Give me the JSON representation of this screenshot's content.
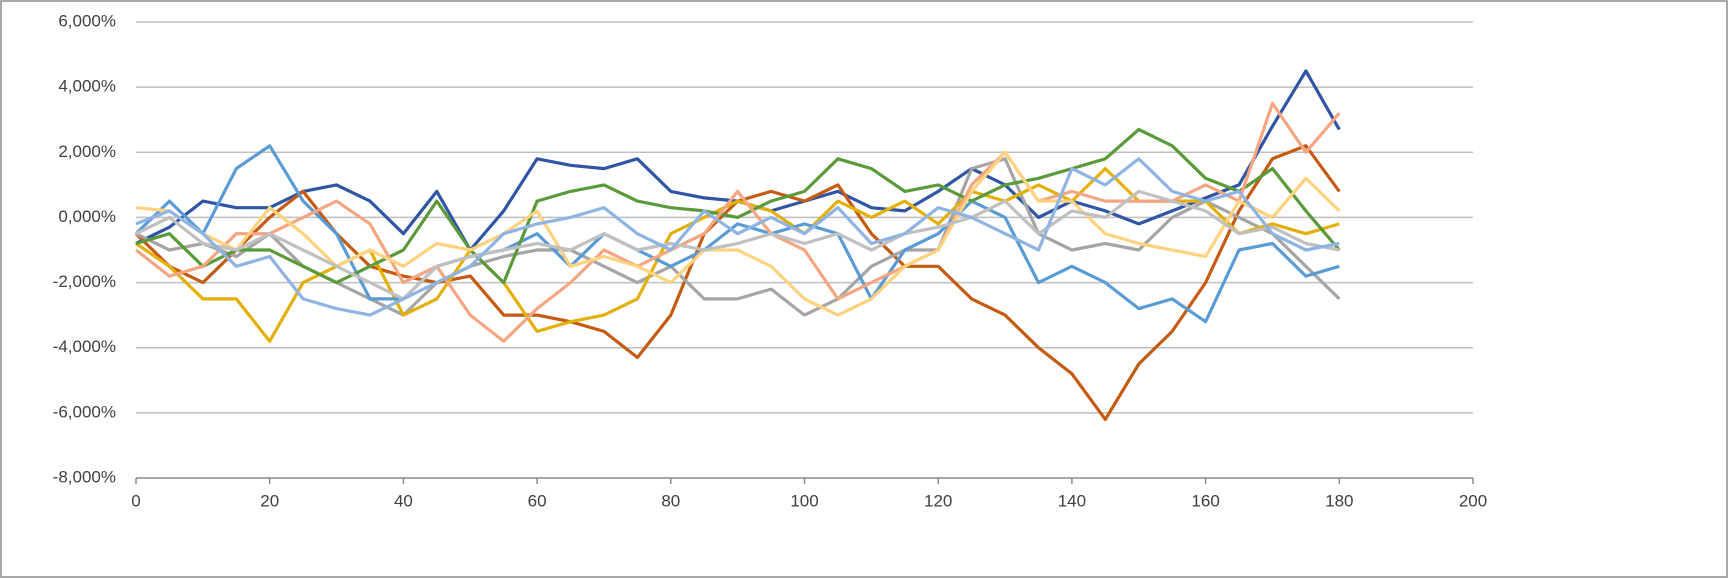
{
  "chart_data": {
    "type": "line",
    "x": [
      0,
      5,
      10,
      15,
      20,
      25,
      30,
      35,
      40,
      45,
      50,
      55,
      60,
      65,
      70,
      75,
      80,
      85,
      90,
      95,
      100,
      105,
      110,
      115,
      120,
      125,
      130,
      135,
      140,
      145,
      150,
      155,
      160,
      165,
      170,
      175,
      180
    ],
    "xlim": [
      0,
      200
    ],
    "xticks": [
      0,
      20,
      40,
      60,
      80,
      100,
      120,
      140,
      160,
      180,
      200
    ],
    "ylim": [
      -8,
      6
    ],
    "yticks": [
      {
        "value": -8,
        "label": "-8,000%"
      },
      {
        "value": -6,
        "label": "-6,000%"
      },
      {
        "value": -4,
        "label": "-4,000%"
      },
      {
        "value": -2,
        "label": "-2,000%"
      },
      {
        "value": 0,
        "label": "0,000%"
      },
      {
        "value": 2,
        "label": "2,000%"
      },
      {
        "value": 4,
        "label": "4,000%"
      },
      {
        "value": 6,
        "label": "6,000%"
      }
    ],
    "grid": true,
    "series": [
      {
        "color": "#2f55a4",
        "values": [
          -0.8,
          -0.3,
          0.5,
          0.3,
          0.3,
          0.8,
          1.0,
          0.5,
          -0.5,
          0.8,
          -1.0,
          0.2,
          1.8,
          1.6,
          1.5,
          1.8,
          0.8,
          0.6,
          0.5,
          0.2,
          0.5,
          0.8,
          0.3,
          0.2,
          0.8,
          1.5,
          1.0,
          0,
          0.5,
          0.2,
          -0.2,
          0.2,
          0.6,
          1.0,
          2.8,
          4.5,
          2.7
        ]
      },
      {
        "color": "#c55a11",
        "values": [
          -0.5,
          -1.5,
          -2.0,
          -1.0,
          0,
          0.8,
          -0.5,
          -1.5,
          -1.8,
          -2.0,
          -1.8,
          -3.0,
          -3.0,
          -3.2,
          -3.5,
          -4.3,
          -3.0,
          -0.5,
          0.5,
          0.8,
          0.5,
          1.0,
          -0.5,
          -1.5,
          -1.5,
          -2.5,
          -3.0,
          -4.0,
          -4.8,
          -6.2,
          -4.5,
          -3.5,
          -2.0,
          0.2,
          1.8,
          2.2,
          0.8
        ]
      },
      {
        "color": "#a5a5a5",
        "values": [
          -0.5,
          -1.0,
          -0.8,
          -1.2,
          -0.5,
          -1.5,
          -2.0,
          -2.5,
          -3.0,
          -2.0,
          -1.5,
          -1.2,
          -1.0,
          -1.0,
          -1.5,
          -2.0,
          -1.5,
          -2.5,
          -2.5,
          -2.2,
          -3.0,
          -2.5,
          -1.5,
          -1.0,
          -1.0,
          1.5,
          1.8,
          -0.5,
          -1.0,
          -0.8,
          -1.0,
          0,
          0.5,
          0,
          -0.5,
          -1.5,
          -2.5
        ]
      },
      {
        "color": "#e2b007",
        "values": [
          -0.8,
          -1.5,
          -2.5,
          -2.5,
          -3.8,
          -2.0,
          -1.5,
          -1.0,
          -3.0,
          -2.5,
          -1.0,
          -2.0,
          -3.5,
          -3.2,
          -3.0,
          -2.5,
          -0.5,
          0,
          0.5,
          0.2,
          -0.5,
          0.5,
          0,
          0.5,
          -0.2,
          0.8,
          0.5,
          1.0,
          0.5,
          1.5,
          0.5,
          0.5,
          0.5,
          -0.5,
          -0.2,
          -0.5,
          -0.2
        ]
      },
      {
        "color": "#5b9bd5",
        "values": [
          -0.5,
          0.5,
          -0.5,
          1.5,
          2.2,
          0.5,
          -0.5,
          -2.5,
          -2.5,
          -1.5,
          -1.2,
          -1.0,
          -0.5,
          -1.5,
          -0.5,
          -1.0,
          -1.5,
          -1.0,
          -0.2,
          -0.5,
          -0.2,
          -0.5,
          -2.5,
          -1.0,
          -0.5,
          0.5,
          0,
          -2.0,
          -1.5,
          -2.0,
          -2.8,
          -2.5,
          -3.2,
          -1.0,
          -0.8,
          -1.8,
          -1.5
        ]
      },
      {
        "color": "#5b9a3a",
        "values": [
          -0.8,
          -0.5,
          -1.5,
          -1.0,
          -1.0,
          -1.5,
          -2.0,
          -1.5,
          -1.0,
          0.5,
          -1.0,
          -2.0,
          0.5,
          0.8,
          1.0,
          0.5,
          0.3,
          0.2,
          0,
          0.5,
          0.8,
          1.8,
          1.5,
          0.8,
          1.0,
          0.5,
          1.0,
          1.2,
          1.5,
          1.8,
          2.7,
          2.2,
          1.2,
          0.8,
          1.5,
          0.2,
          -1.0
        ]
      },
      {
        "color": "#f4a582",
        "values": [
          -1.0,
          -1.8,
          -1.5,
          -0.5,
          -0.5,
          0,
          0.5,
          -0.2,
          -2.0,
          -1.5,
          -3.0,
          -3.8,
          -2.8,
          -2.0,
          -1.0,
          -1.5,
          -1.0,
          -0.5,
          0.8,
          -0.5,
          -1.0,
          -2.5,
          -2.0,
          -1.5,
          -1.0,
          1.0,
          2.0,
          0.5,
          0.8,
          0.5,
          0.5,
          0.5,
          1.0,
          0.5,
          3.5,
          2.0,
          3.2
        ]
      },
      {
        "color": "#ffd27f",
        "values": [
          0.3,
          0.2,
          -0.5,
          -1.0,
          0.3,
          -0.5,
          -1.5,
          -1.0,
          -1.5,
          -0.8,
          -1.0,
          -0.5,
          0.2,
          -1.5,
          -1.2,
          -1.5,
          -2.0,
          -1.0,
          -1.0,
          -1.5,
          -2.5,
          -3.0,
          -2.5,
          -1.5,
          -1.0,
          0.8,
          2.0,
          0.5,
          0.5,
          -0.5,
          -0.8,
          -1.0,
          -1.2,
          0.5,
          0,
          1.2,
          0.2
        ]
      },
      {
        "color": "#c0c0c0",
        "values": [
          -0.5,
          0,
          -0.8,
          -1.0,
          -0.5,
          -1.0,
          -1.5,
          -2.0,
          -2.5,
          -1.5,
          -1.2,
          -1.0,
          -0.8,
          -1.0,
          -0.5,
          -1.0,
          -0.8,
          -1.0,
          -0.8,
          -0.5,
          -0.8,
          -0.5,
          -1.0,
          -0.5,
          -0.3,
          0,
          0.5,
          -0.5,
          0.2,
          0,
          0.8,
          0.5,
          0.2,
          -0.5,
          -0.3,
          -0.8,
          -1.0
        ]
      },
      {
        "color": "#8fb4e3",
        "values": [
          -0.2,
          0.2,
          -0.5,
          -1.5,
          -1.2,
          -2.5,
          -2.8,
          -3.0,
          -2.5,
          -2.0,
          -1.5,
          -0.5,
          -0.2,
          0,
          0.3,
          -0.5,
          -1.0,
          0.2,
          -0.5,
          0,
          -0.5,
          0.3,
          -0.8,
          -0.5,
          0.3,
          0,
          -0.5,
          -1.0,
          1.5,
          1.0,
          1.8,
          0.8,
          0.5,
          0.8,
          -0.5,
          -1.0,
          -0.8
        ]
      }
    ]
  }
}
